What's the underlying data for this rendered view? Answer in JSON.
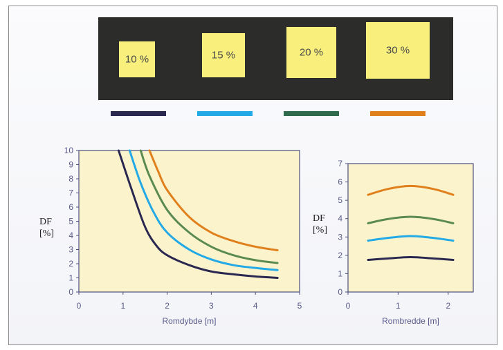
{
  "windows": [
    {
      "label": "10 %",
      "color": "#2a2750"
    },
    {
      "label": "15 %",
      "color": "#22a9e6"
    },
    {
      "label": "20 %",
      "color": "#2f6b4c"
    },
    {
      "label": "30 %",
      "color": "#e0801d"
    }
  ],
  "chart_data": [
    {
      "type": "line",
      "xlabel": "Romdybde [m]",
      "ylabel_line1": "DF",
      "ylabel_line2": "[%]",
      "xlim": [
        0,
        5
      ],
      "ylim": [
        0,
        10
      ],
      "xticks": [
        "0",
        "1",
        "2",
        "3",
        "4",
        "5"
      ],
      "yticks": [
        "0",
        "1",
        "2",
        "3",
        "4",
        "5",
        "6",
        "7",
        "8",
        "9",
        "10"
      ],
      "grid": false,
      "series": [
        {
          "color": "#2a2750",
          "x": [
            0.9,
            1.2,
            1.5,
            1.75,
            2.0,
            2.5,
            3.0,
            3.5,
            4.0,
            4.5
          ],
          "y": [
            10,
            7.2,
            4.6,
            3.3,
            2.6,
            1.9,
            1.45,
            1.25,
            1.1,
            1.0
          ]
        },
        {
          "color": "#22a9e6",
          "x": [
            1.15,
            1.4,
            1.7,
            2.0,
            2.5,
            3.0,
            3.5,
            4.0,
            4.5
          ],
          "y": [
            10,
            7.7,
            5.6,
            4.2,
            3.0,
            2.3,
            1.9,
            1.7,
            1.55
          ]
        },
        {
          "color": "#5a8a52",
          "x": [
            1.4,
            1.6,
            2.0,
            2.5,
            3.0,
            3.5,
            4.0,
            4.5
          ],
          "y": [
            10,
            8.2,
            5.8,
            4.2,
            3.2,
            2.6,
            2.25,
            2.05
          ]
        },
        {
          "color": "#e0801d",
          "x": [
            1.6,
            1.8,
            2.0,
            2.5,
            3.0,
            3.5,
            4.0,
            4.5
          ],
          "y": [
            10,
            8.5,
            7.2,
            5.3,
            4.2,
            3.6,
            3.2,
            2.95
          ]
        }
      ]
    },
    {
      "type": "line",
      "xlabel": "Rombredde [m]",
      "ylabel_line1": "DF",
      "ylabel_line2": "[%]",
      "xlim": [
        0,
        2.5
      ],
      "ylim": [
        0,
        7
      ],
      "xticks": [
        "0",
        "1",
        "2"
      ],
      "yticks": [
        "0",
        "1",
        "2",
        "3",
        "4",
        "5",
        "6",
        "7"
      ],
      "grid": false,
      "series": [
        {
          "color": "#2a2750",
          "x": [
            0.4,
            0.8,
            1.25,
            1.7,
            2.1
          ],
          "y": [
            1.75,
            1.83,
            1.9,
            1.83,
            1.75
          ]
        },
        {
          "color": "#22a9e6",
          "x": [
            0.4,
            0.8,
            1.25,
            1.7,
            2.1
          ],
          "y": [
            2.8,
            2.95,
            3.05,
            2.95,
            2.8
          ]
        },
        {
          "color": "#5a8a52",
          "x": [
            0.4,
            0.8,
            1.25,
            1.7,
            2.1
          ],
          "y": [
            3.75,
            3.98,
            4.1,
            3.98,
            3.75
          ]
        },
        {
          "color": "#e0801d",
          "x": [
            0.4,
            0.8,
            1.25,
            1.7,
            2.1
          ],
          "y": [
            5.3,
            5.62,
            5.78,
            5.62,
            5.3
          ]
        }
      ]
    }
  ]
}
